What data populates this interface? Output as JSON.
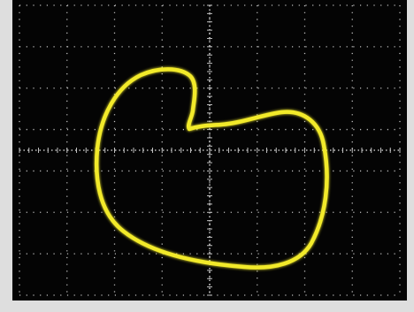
{
  "scope": {
    "background_color": "#040404",
    "bezel_color": "#dedede",
    "grid_color": "#bfbfbf",
    "trace_color": "#f2ea2a",
    "grid": {
      "vertical_divisions": 8,
      "horizontal_divisions": 7,
      "minor_ticks_per_division": 5
    },
    "trace_shape": "heart-shaped lissajous figure"
  }
}
